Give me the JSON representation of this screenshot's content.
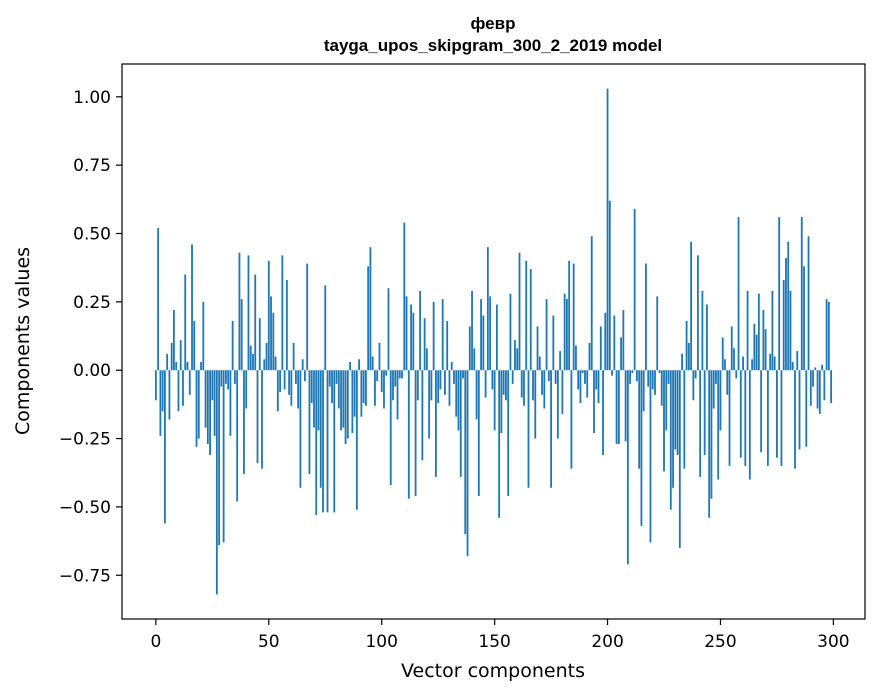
{
  "chart_data": {
    "type": "bar",
    "title": "февр",
    "subtitle": "tayga_upos_skipgram_300_2_2019 model",
    "xlabel": "Vector components",
    "ylabel": "Components values",
    "xlim": [
      -15,
      314
    ],
    "ylim": [
      -0.91,
      1.12
    ],
    "xticks": [
      0,
      50,
      100,
      150,
      200,
      250,
      300
    ],
    "xtick_labels": [
      "0",
      "50",
      "100",
      "150",
      "200",
      "250",
      "300"
    ],
    "yticks": [
      1.0,
      0.75,
      0.5,
      0.25,
      0.0,
      -0.25,
      -0.5,
      -0.75
    ],
    "ytick_labels": [
      "1.00",
      "0.75",
      "0.50",
      "0.25",
      "0.00",
      "−0.25",
      "−0.50",
      "−0.75"
    ],
    "grid": false,
    "bar_color": "#1f77b4",
    "x": "0..299",
    "values": [
      -0.11,
      0.52,
      -0.24,
      -0.15,
      -0.56,
      0.06,
      -0.18,
      0.1,
      0.22,
      0.03,
      -0.15,
      0.11,
      -0.13,
      0.35,
      0.03,
      -0.09,
      0.46,
      0.18,
      -0.28,
      -0.25,
      0.03,
      0.25,
      -0.21,
      -0.27,
      -0.31,
      -0.11,
      -0.24,
      -0.82,
      -0.64,
      -0.06,
      -0.63,
      -0.05,
      -0.07,
      -0.24,
      0.18,
      -0.05,
      -0.48,
      0.43,
      0.26,
      -0.38,
      -0.14,
      0.42,
      0.09,
      0.06,
      0.35,
      -0.34,
      0.19,
      -0.36,
      0.04,
      0.1,
      0.4,
      0.27,
      0.21,
      0.05,
      -0.15,
      -0.08,
      0.42,
      -0.07,
      0.33,
      -0.09,
      -0.13,
      0.1,
      -0.05,
      -0.14,
      -0.43,
      0.04,
      -0.04,
      0.39,
      -0.38,
      -0.12,
      -0.21,
      -0.53,
      -0.22,
      -0.43,
      -0.52,
      0.31,
      -0.52,
      -0.06,
      -0.12,
      -0.52,
      -0.05,
      -0.14,
      -0.22,
      -0.21,
      -0.27,
      -0.25,
      0.03,
      -0.23,
      -0.17,
      -0.51,
      0.04,
      -0.17,
      -0.12,
      -0.13,
      0.38,
      0.45,
      0.05,
      -0.13,
      -0.04,
      0.1,
      -0.08,
      -0.14,
      -0.02,
      0.3,
      -0.42,
      -0.11,
      -0.06,
      -0.18,
      -0.03,
      -0.03,
      0.54,
      0.27,
      -0.47,
      0.24,
      0.21,
      -0.46,
      -0.11,
      0.29,
      -0.33,
      0.19,
      0.08,
      -0.25,
      -0.11,
      0.25,
      -0.39,
      -0.12,
      -0.07,
      0.26,
      -0.09,
      0.18,
      -0.13,
      0.03,
      -0.05,
      -0.17,
      -0.22,
      -0.39,
      -0.03,
      -0.6,
      -0.68,
      0.16,
      0.29,
      0.08,
      -0.18,
      -0.46,
      0.26,
      0.2,
      -0.1,
      0.45,
      0.27,
      -0.07,
      -0.22,
      0.24,
      -0.54,
      -0.23,
      -0.09,
      -0.11,
      -0.46,
      0.28,
      -0.05,
      0.11,
      0.08,
      0.43,
      -0.1,
      -0.13,
      0.4,
      -0.43,
      0.37,
      -0.11,
      -0.25,
      0.16,
      0.05,
      -0.09,
      -0.14,
      0.26,
      -0.04,
      -0.43,
      0.2,
      -0.05,
      -0.25,
      0.07,
      -0.16,
      0.28,
      0.26,
      0.4,
      -0.36,
      0.39,
      0.09,
      -0.07,
      -0.12,
      -0.01,
      -0.05,
      -0.1,
      0.1,
      0.49,
      -0.23,
      -0.07,
      -0.12,
      0.16,
      -0.31,
      0.21,
      1.03,
      0.62,
      -0.02,
      0.2,
      -0.27,
      -0.27,
      0.12,
      0.22,
      -0.26,
      -0.71,
      -0.05,
      -0.01,
      0.59,
      -0.04,
      -0.36,
      -0.57,
      -0.15,
      0.39,
      -0.06,
      -0.63,
      -0.07,
      -0.09,
      0.27,
      -0.01,
      -0.13,
      -0.37,
      -0.22,
      -0.05,
      -0.51,
      -0.43,
      -0.29,
      -0.31,
      -0.65,
      0.06,
      -0.36,
      0.18,
      0.1,
      0.47,
      -0.11,
      -0.03,
      0.42,
      -0.39,
      0.29,
      -0.31,
      0.24,
      -0.54,
      -0.47,
      -0.14,
      -0.05,
      -0.4,
      -0.22,
      0.12,
      0.04,
      -0.09,
      -0.35,
      0.16,
      0.08,
      -0.03,
      0.56,
      -0.32,
      0.05,
      -0.35,
      0.29,
      -0.4,
      0.04,
      0.17,
      0.13,
      0.28,
      -0.3,
      0.22,
      0.15,
      -0.35,
      0.06,
      0.29,
      0.05,
      -0.32,
      0.56,
      -0.35,
      0.33,
      0.41,
      0.47,
      0.29,
      0.03,
      -0.36,
      0.07,
      -0.29,
      0.56,
      0.38,
      -0.28,
      0.49,
      -0.13,
      -0.06,
      0.01,
      -0.14,
      -0.16,
      0.02,
      -0.11,
      0.26,
      0.25,
      -0.12
    ]
  }
}
